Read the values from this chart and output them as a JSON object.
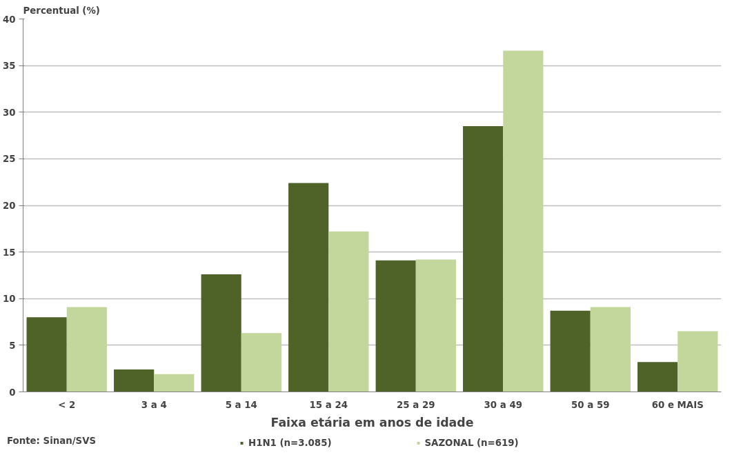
{
  "chart_data": {
    "type": "bar",
    "ylabel": "Percentual (%)",
    "xlabel": "Faixa etária em anos de idade",
    "categories": [
      "< 2",
      "3 a 4",
      "5 a 14",
      "15 a 24",
      "25 a 29",
      "30 a 49",
      "50 a 59",
      "60 e MAIS"
    ],
    "series": [
      {
        "name": "H1N1 (n=3.085)",
        "color": "#4f6228",
        "values": [
          8.0,
          2.4,
          12.6,
          22.4,
          14.1,
          28.5,
          8.7,
          3.2
        ]
      },
      {
        "name": "SAZONAL (n=619)",
        "color": "#c3d69b",
        "values": [
          9.1,
          1.9,
          6.3,
          17.2,
          14.2,
          36.6,
          9.1,
          6.5
        ]
      }
    ],
    "ylim": [
      0,
      40
    ],
    "yticks": [
      0,
      5,
      10,
      15,
      20,
      25,
      30,
      35,
      40
    ],
    "grid": "y",
    "legend": "bottom",
    "annotations": [
      "Fonte: Sinan/SVS"
    ]
  }
}
